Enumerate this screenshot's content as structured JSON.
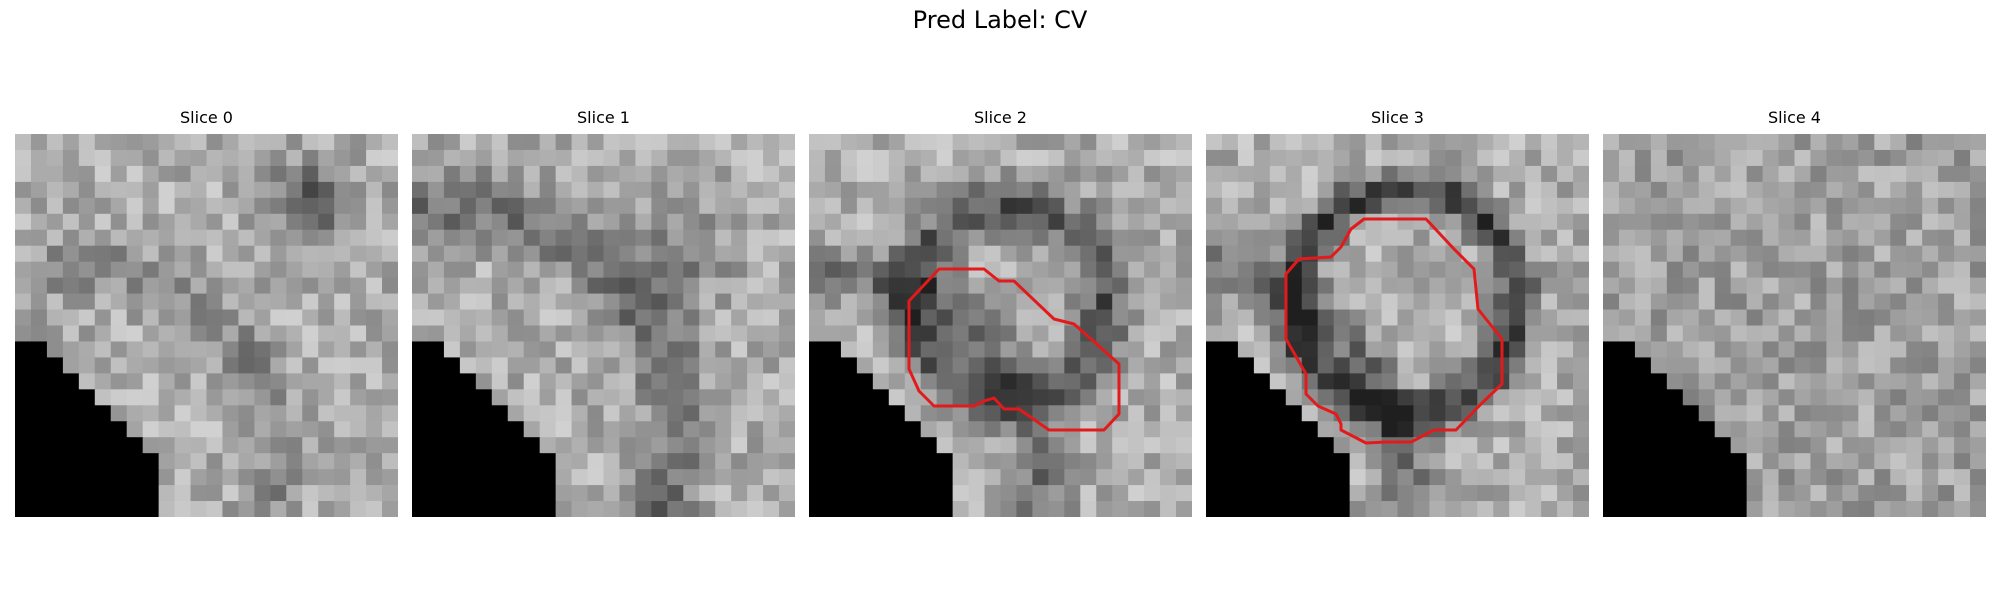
{
  "figure": {
    "title": "Pred Label: CV"
  },
  "panels": [
    {
      "label": "Slice 0",
      "has_contour": false
    },
    {
      "label": "Slice 1",
      "has_contour": false
    },
    {
      "label": "Slice 2",
      "has_contour": true
    },
    {
      "label": "Slice 3",
      "has_contour": true
    },
    {
      "label": "Slice 4",
      "has_contour": false
    }
  ],
  "colors": {
    "contour": "#e31a1c",
    "background": "#ffffff"
  }
}
